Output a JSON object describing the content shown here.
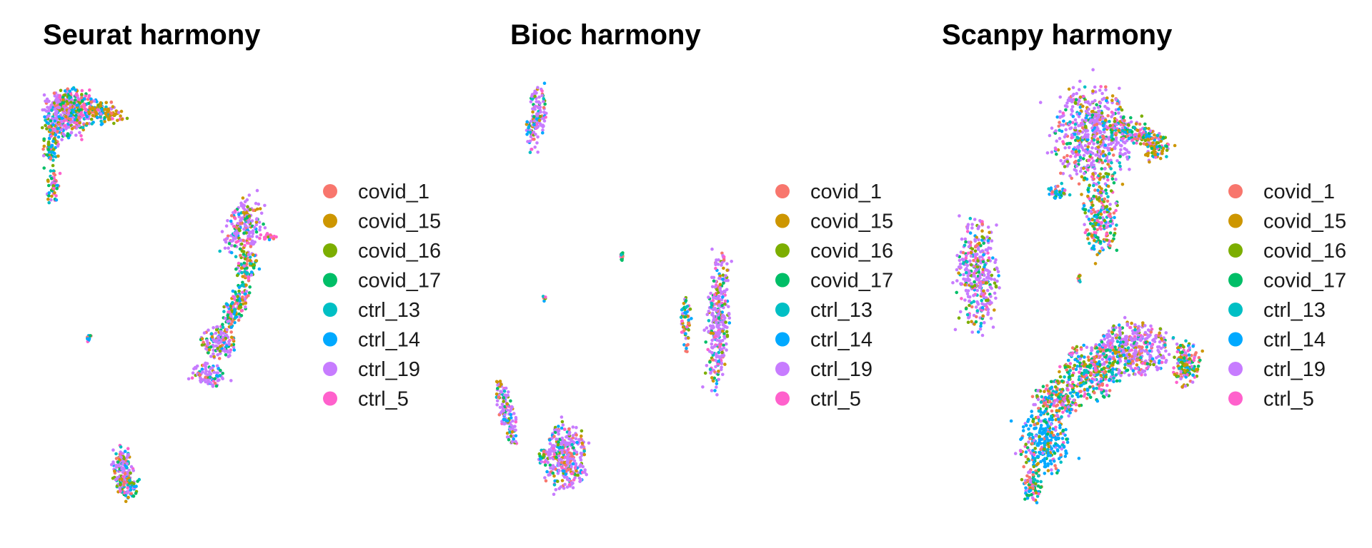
{
  "chart_data": [
    {
      "type": "scatter",
      "title": "Seurat harmony",
      "xlabel": "",
      "ylabel": "",
      "grid": false,
      "axes_visible": false,
      "legend_position": "right",
      "series": [
        {
          "name": "covid_1",
          "color": "#F8766D"
        },
        {
          "name": "covid_15",
          "color": "#CD9600"
        },
        {
          "name": "covid_16",
          "color": "#7CAE00"
        },
        {
          "name": "covid_17",
          "color": "#00BE67"
        },
        {
          "name": "ctrl_13",
          "color": "#00BFC4"
        },
        {
          "name": "ctrl_14",
          "color": "#00A9FF"
        },
        {
          "name": "ctrl_19",
          "color": "#C77CFF"
        },
        {
          "name": "ctrl_5",
          "color": "#FF61CC"
        }
      ]
    },
    {
      "type": "scatter",
      "title": "Bioc harmony",
      "xlabel": "",
      "ylabel": "",
      "grid": false,
      "axes_visible": false,
      "legend_position": "right",
      "series": [
        {
          "name": "covid_1",
          "color": "#F8766D"
        },
        {
          "name": "covid_15",
          "color": "#CD9600"
        },
        {
          "name": "covid_16",
          "color": "#7CAE00"
        },
        {
          "name": "covid_17",
          "color": "#00BE67"
        },
        {
          "name": "ctrl_13",
          "color": "#00BFC4"
        },
        {
          "name": "ctrl_14",
          "color": "#00A9FF"
        },
        {
          "name": "ctrl_19",
          "color": "#C77CFF"
        },
        {
          "name": "ctrl_5",
          "color": "#FF61CC"
        }
      ]
    },
    {
      "type": "scatter",
      "title": "Scanpy harmony",
      "xlabel": "",
      "ylabel": "",
      "grid": false,
      "axes_visible": false,
      "legend_position": "right",
      "series": [
        {
          "name": "covid_1",
          "color": "#F8766D"
        },
        {
          "name": "covid_15",
          "color": "#CD9600"
        },
        {
          "name": "covid_16",
          "color": "#7CAE00"
        },
        {
          "name": "covid_17",
          "color": "#00BE67"
        },
        {
          "name": "ctrl_13",
          "color": "#00BFC4"
        },
        {
          "name": "ctrl_14",
          "color": "#00A9FF"
        },
        {
          "name": "ctrl_19",
          "color": "#C77CFF"
        },
        {
          "name": "ctrl_5",
          "color": "#FF61CC"
        }
      ]
    }
  ]
}
